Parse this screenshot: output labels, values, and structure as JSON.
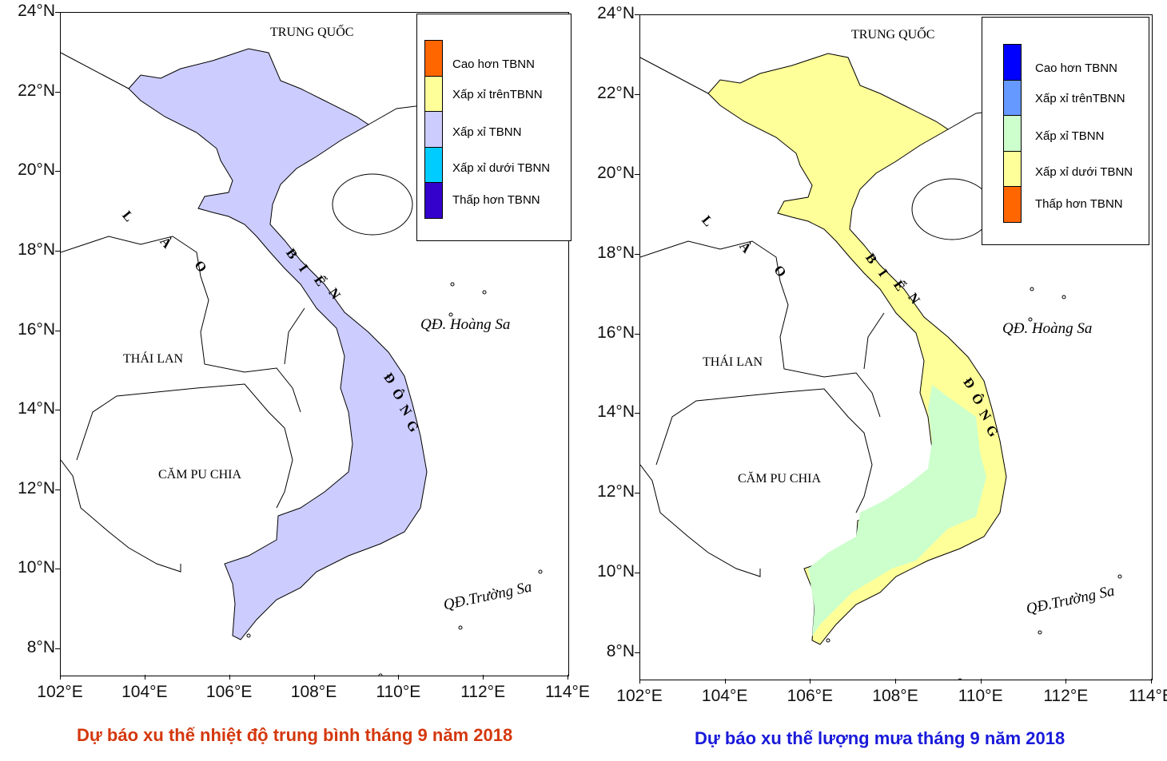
{
  "lat_ticks": [
    "24°N",
    "22°N",
    "20°N",
    "18°N",
    "16°N",
    "14°N",
    "12°N",
    "10°N",
    "8°N"
  ],
  "lon_ticks": [
    "102°E",
    "104°E",
    "106°E",
    "108°E",
    "110°E",
    "112°E",
    "114°E"
  ],
  "labels": {
    "china": "TRUNG  QUỐC",
    "laos": [
      "L",
      "À",
      "O"
    ],
    "sea": [
      "B",
      "I",
      "Ể",
      "N",
      "Đ",
      "Ô",
      "N",
      "G"
    ],
    "thailand": "THÁI  LAN",
    "cambodia": "CĂM PU CHIA",
    "paracel": "QĐ. Hoàng Sa",
    "spratly": "QĐ.Trường Sa"
  },
  "maps": [
    {
      "title": "Dự báo xu thế nhiệt độ trung bình tháng 9 năm 2018",
      "title_color": "#d4380d",
      "forecast_category": "Xấp xỉ TBNN",
      "fill": "#ccccff",
      "legend": [
        {
          "label": "Cao hơn TBNN",
          "color": "#ff6600"
        },
        {
          "label": "Xấp xỉ trênTBNN",
          "color": "#ffff99"
        },
        {
          "label": "Xấp xỉ TBNN",
          "color": "#ccccff"
        },
        {
          "label": "Xấp xỉ dưới TBNN",
          "color": "#00ccff"
        },
        {
          "label": "Thấp hơn TBNN",
          "color": "#3300cc"
        }
      ]
    },
    {
      "title": "Dự báo xu thế lượng mưa tháng 9 năm 2018",
      "title_color": "#1a1adb",
      "forecast_category": "Xấp xỉ dưới TBNN (North/Central), Xấp xỉ TBNN (South/Highlands)",
      "fill": "#ffff99",
      "fill2": "#ccffcc",
      "legend": [
        {
          "label": "Cao hơn TBNN",
          "color": "#0000ff"
        },
        {
          "label": "Xấp xỉ trênTBNN",
          "color": "#6699ff"
        },
        {
          "label": "Xấp xỉ TBNN",
          "color": "#ccffcc"
        },
        {
          "label": "Xấp xỉ dưới TBNN",
          "color": "#ffff99"
        },
        {
          "label": "Thấp hơn TBNN",
          "color": "#ff6600"
        }
      ]
    }
  ]
}
